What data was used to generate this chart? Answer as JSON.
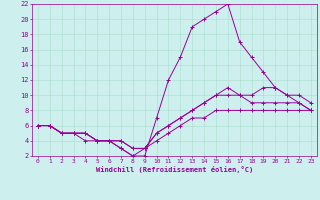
{
  "xlabel": "Windchill (Refroidissement éolien,°C)",
  "bg_color": "#cdf0ee",
  "line_color": "#990099",
  "grid_color": "#aaddcc",
  "xlim": [
    -0.5,
    23.5
  ],
  "ylim": [
    2,
    22
  ],
  "xticks": [
    0,
    1,
    2,
    3,
    4,
    5,
    6,
    7,
    8,
    9,
    10,
    11,
    12,
    13,
    14,
    15,
    16,
    17,
    18,
    19,
    20,
    21,
    22,
    23
  ],
  "yticks": [
    2,
    4,
    6,
    8,
    10,
    12,
    14,
    16,
    18,
    20,
    22
  ],
  "curves": [
    {
      "x": [
        0,
        1,
        2,
        3,
        4,
        5,
        6,
        7,
        8,
        9,
        10,
        11,
        12,
        13,
        14,
        15,
        16,
        17,
        18,
        19,
        20,
        21,
        22,
        23
      ],
      "y": [
        6,
        6,
        5,
        5,
        5,
        4,
        4,
        3,
        2,
        2,
        7,
        12,
        15,
        19,
        20,
        21,
        22,
        17,
        15,
        13,
        11,
        10,
        9,
        8
      ]
    },
    {
      "x": [
        0,
        1,
        2,
        3,
        4,
        5,
        6,
        7,
        8,
        9,
        10,
        11,
        12,
        13,
        14,
        15,
        16,
        17,
        18,
        19,
        20,
        21,
        22,
        23
      ],
      "y": [
        6,
        6,
        5,
        5,
        5,
        4,
        4,
        4,
        3,
        3,
        5,
        6,
        7,
        8,
        9,
        10,
        11,
        10,
        10,
        11,
        11,
        10,
        10,
        9
      ]
    },
    {
      "x": [
        0,
        1,
        2,
        3,
        4,
        5,
        6,
        7,
        8,
        9,
        10,
        11,
        12,
        13,
        14,
        15,
        16,
        17,
        18,
        19,
        20,
        21,
        22,
        23
      ],
      "y": [
        6,
        6,
        5,
        5,
        5,
        4,
        4,
        4,
        3,
        3,
        5,
        6,
        7,
        8,
        9,
        10,
        10,
        10,
        9,
        9,
        9,
        9,
        9,
        8
      ]
    },
    {
      "x": [
        0,
        1,
        2,
        3,
        4,
        5,
        6,
        7,
        8,
        9,
        10,
        11,
        12,
        13,
        14,
        15,
        16,
        17,
        18,
        19,
        20,
        21,
        22,
        23
      ],
      "y": [
        6,
        6,
        5,
        5,
        4,
        4,
        4,
        3,
        2,
        3,
        4,
        5,
        6,
        7,
        7,
        8,
        8,
        8,
        8,
        8,
        8,
        8,
        8,
        8
      ]
    }
  ]
}
